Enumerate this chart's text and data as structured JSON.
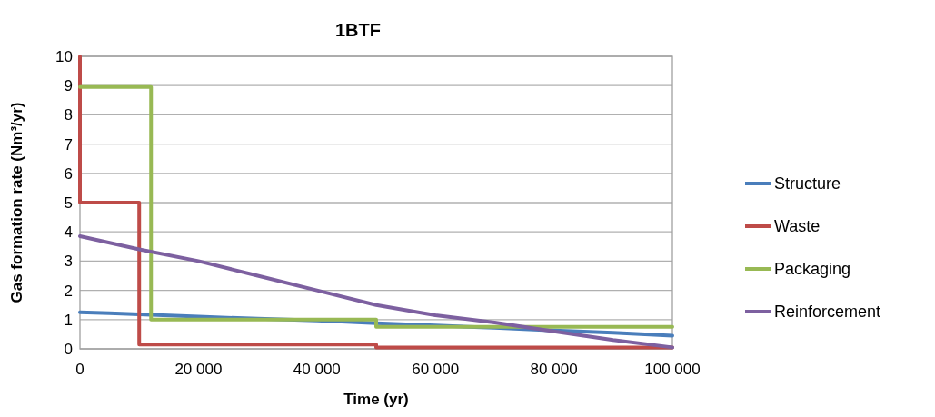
{
  "chart_data": {
    "type": "line",
    "title": "1BTF",
    "xlabel": "Time (yr)",
    "ylabel": "Gas formation rate (Nm³/yr)",
    "xlim": [
      0,
      100000
    ],
    "xticks": [
      0,
      {
        "value": 20000,
        "label": "20 000"
      },
      {
        "value": 40000,
        "label": "40 000"
      },
      {
        "value": 60000,
        "label": "60 000"
      },
      {
        "value": 80000,
        "label": "80 000"
      },
      {
        "value": 100000,
        "label": "100 000"
      }
    ],
    "ylim": [
      0,
      10
    ],
    "yticks": [
      0,
      1,
      2,
      3,
      4,
      5,
      6,
      7,
      8,
      9,
      10
    ],
    "grid": "y",
    "legend": "right",
    "marker": "none",
    "line_style": "solid",
    "series": [
      {
        "name": "Structure",
        "color": "#4a7ebb",
        "x": [
          0,
          5000,
          10000,
          20000,
          30000,
          40000,
          50000,
          60000,
          70000,
          80000,
          90000,
          100000
        ],
        "values": [
          1.25,
          1.22,
          1.18,
          1.1,
          1.03,
          0.97,
          0.88,
          0.8,
          0.72,
          0.63,
          0.55,
          0.45
        ]
      },
      {
        "name": "Waste",
        "color": "#be4b48",
        "x": [
          0,
          0,
          10000,
          10000,
          50000,
          50000,
          100000
        ],
        "values": [
          10,
          5,
          5,
          0.15,
          0.15,
          0.05,
          0.05
        ]
      },
      {
        "name": "Packaging",
        "color": "#98b954",
        "x": [
          0,
          12000,
          12000,
          50000,
          50000,
          100000
        ],
        "values": [
          8.95,
          8.95,
          1.0,
          1.0,
          0.75,
          0.75
        ]
      },
      {
        "name": "Reinforcement",
        "color": "#7d60a0",
        "x": [
          0,
          10000,
          20000,
          30000,
          40000,
          50000,
          60000,
          70000,
          80000,
          90000,
          100000
        ],
        "values": [
          3.85,
          3.4,
          3.0,
          2.5,
          2.0,
          1.5,
          1.15,
          0.9,
          0.6,
          0.3,
          0.05
        ]
      }
    ]
  }
}
